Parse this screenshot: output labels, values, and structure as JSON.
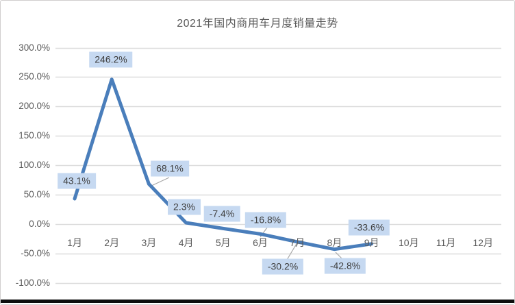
{
  "chart_data": {
    "type": "line",
    "title": "2021年国内商用车月度销量走势",
    "categories": [
      "1月",
      "2月",
      "3月",
      "4月",
      "5月",
      "6月",
      "7月",
      "8月",
      "9月",
      "10月",
      "11月",
      "12月"
    ],
    "values": [
      43.1,
      246.2,
      68.1,
      2.3,
      -7.4,
      -16.8,
      -30.2,
      -42.8,
      -33.6,
      null,
      null,
      null
    ],
    "data_labels": [
      "43.1%",
      "246.2%",
      "68.1%",
      "2.3%",
      "-7.4%",
      "-16.8%",
      "-30.2%",
      "-42.8%",
      "-33.6%"
    ],
    "y_ticks": [
      "300.0%",
      "250.0%",
      "200.0%",
      "150.0%",
      "100.0%",
      "50.0%",
      "0.0%",
      "-50.0%",
      "-100.0%"
    ],
    "ylim": [
      -100,
      300
    ],
    "y_step": 50,
    "grid": true,
    "legend": "none",
    "colors": {
      "line": "#4a7ebb",
      "label_bg": "#c6d9f1",
      "label_text": "#3f3f3f",
      "axis_text": "#595959",
      "gridline": "#dcdcdc",
      "title_text": "#595959",
      "leader": "#a6a6a6",
      "bottom_bar": "#0d0d0d"
    }
  }
}
